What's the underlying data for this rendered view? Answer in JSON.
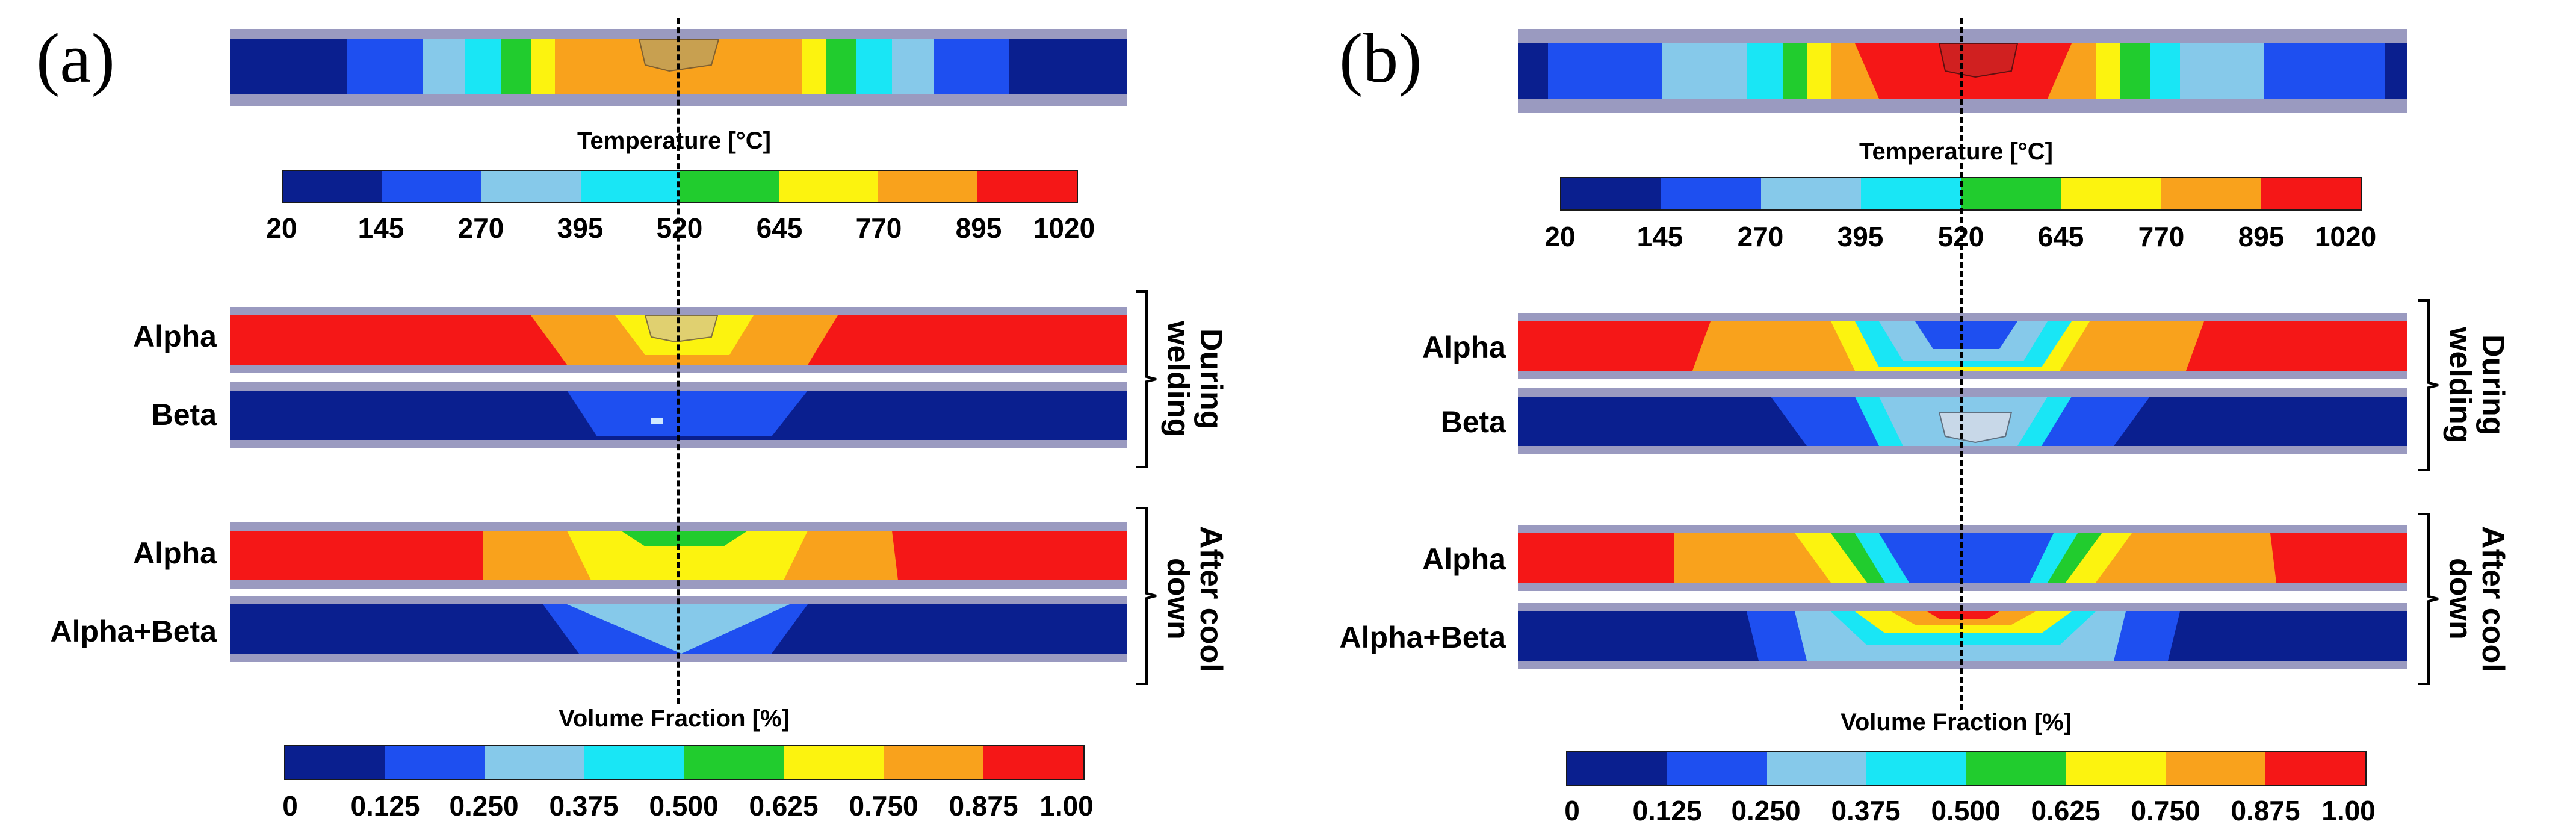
{
  "panels": [
    {
      "id": "a",
      "label": "(a)",
      "temperature_title": "Temperature [°C]",
      "temperature_ticks": [
        "20",
        "145",
        "270",
        "395",
        "520",
        "645",
        "770",
        "895",
        "1020"
      ],
      "volume_title": "Volume Fraction [%]",
      "volume_ticks": [
        "0",
        "0.125",
        "0.250",
        "0.375",
        "0.500",
        "0.625",
        "0.750",
        "0.875",
        "1.00"
      ],
      "rows": {
        "during_alpha": "Alpha",
        "during_beta": "Beta",
        "after_alpha": "Alpha",
        "after_alphabeta": "Alpha+Beta"
      },
      "group_during": "During welding",
      "group_after": "After cool down"
    },
    {
      "id": "b",
      "label": "(b)",
      "temperature_title": "Temperature [°C]",
      "temperature_ticks": [
        "20",
        "145",
        "270",
        "395",
        "520",
        "645",
        "770",
        "895",
        "1020"
      ],
      "volume_title": "Volume Fraction [%]",
      "volume_ticks": [
        "0",
        "0.125",
        "0.250",
        "0.375",
        "0.500",
        "0.625",
        "0.750",
        "0.875",
        "1.00"
      ],
      "rows": {
        "during_alpha": "Alpha",
        "during_beta": "Beta",
        "after_alpha": "Alpha",
        "after_alphabeta": "Alpha+Beta"
      },
      "group_during": "During welding",
      "group_after": "After cool down"
    }
  ],
  "colormap": [
    "#0a1f8f",
    "#1e4ff0",
    "#86c9ea",
    "#19e6f5",
    "#21cc2e",
    "#fcf30f",
    "#f9a21c",
    "#f51717"
  ],
  "plate_border_color": "#9a9ac0"
}
